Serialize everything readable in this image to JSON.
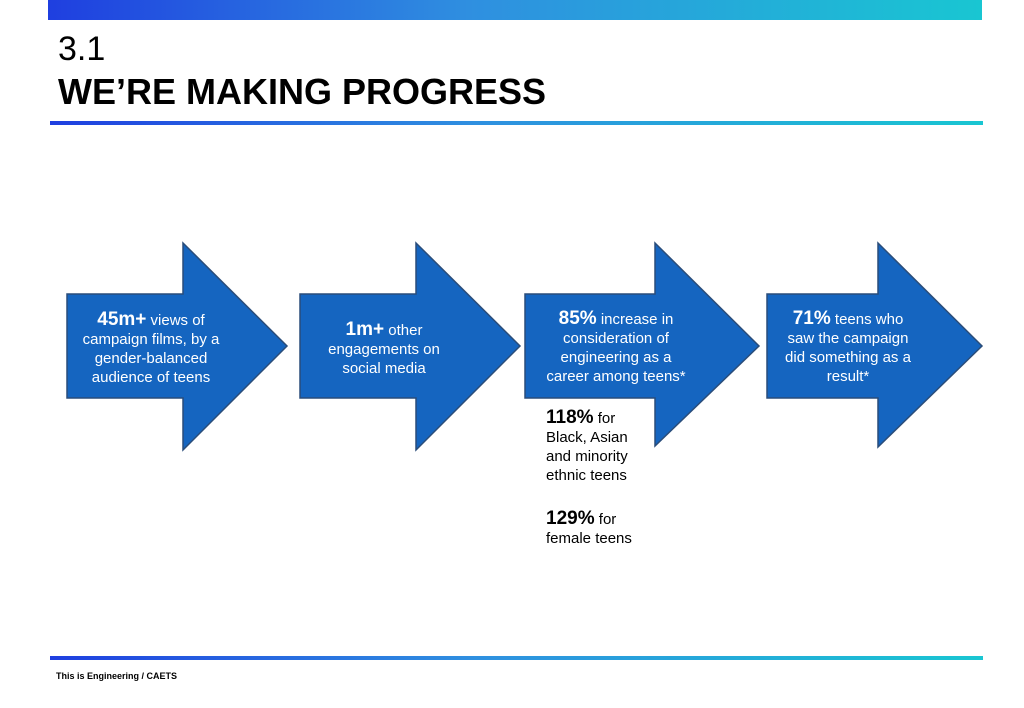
{
  "header": {
    "section_number": "3.1",
    "title": "WE’RE MAKING PROGRESS"
  },
  "arrows": [
    {
      "value": "45m+",
      "text": " views of campaign films, by a gender-balanced audience of teens"
    },
    {
      "value": "1m+",
      "text": " other engagements on social media"
    },
    {
      "value": "85%",
      "text": " increase in consideration of engineering as a career among teens*"
    },
    {
      "value": "71%",
      "text": " teens who saw the campaign did something as a result*"
    }
  ],
  "sub_stats": [
    {
      "value": "118%",
      "text": " for Black, Asian and minority ethnic teens"
    },
    {
      "value": "129%",
      "text": " for female teens"
    }
  ],
  "footer": {
    "text": "This is Engineering / CAETS"
  },
  "colors": {
    "arrow_fill": "#1565c0",
    "arrow_stroke": "#2a4d7a"
  }
}
